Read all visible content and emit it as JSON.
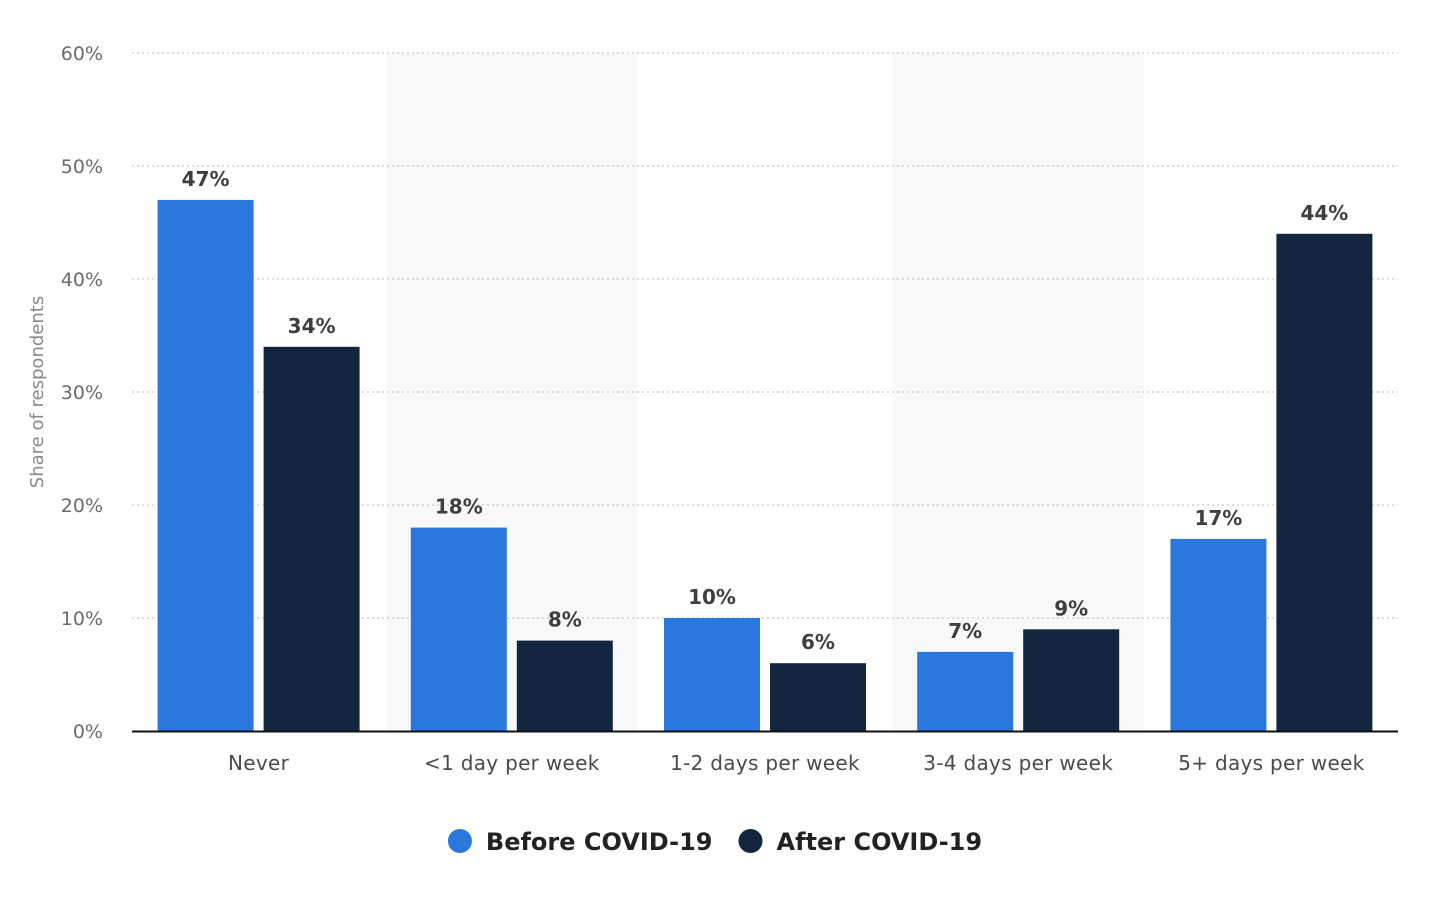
{
  "chart_data": {
    "type": "bar",
    "categories": [
      "Never",
      "<1 day per week",
      "1-2 days per week",
      "3-4 days per week",
      "5+ days per week"
    ],
    "series": [
      {
        "name": "Before COVID-19",
        "values": [
          47,
          18,
          10,
          7,
          17
        ],
        "color": "#2a77dd"
      },
      {
        "name": "After COVID-19",
        "values": [
          34,
          8,
          6,
          9,
          44
        ],
        "color": "#12263f"
      }
    ],
    "ylabel": "Share of respondents",
    "xlabel": "",
    "ylim": [
      0,
      60
    ],
    "yticks": [
      0,
      10,
      20,
      30,
      40,
      50,
      60
    ],
    "ytick_labels": [
      "0%",
      "10%",
      "20%",
      "30%",
      "40%",
      "50%",
      "60%"
    ],
    "value_suffix": "%",
    "grid": true,
    "legend_position": "bottom-center",
    "alternating_band_color": "#f8f8f8",
    "grid_color": "#c8c8c8",
    "axis_color": "#111111"
  }
}
